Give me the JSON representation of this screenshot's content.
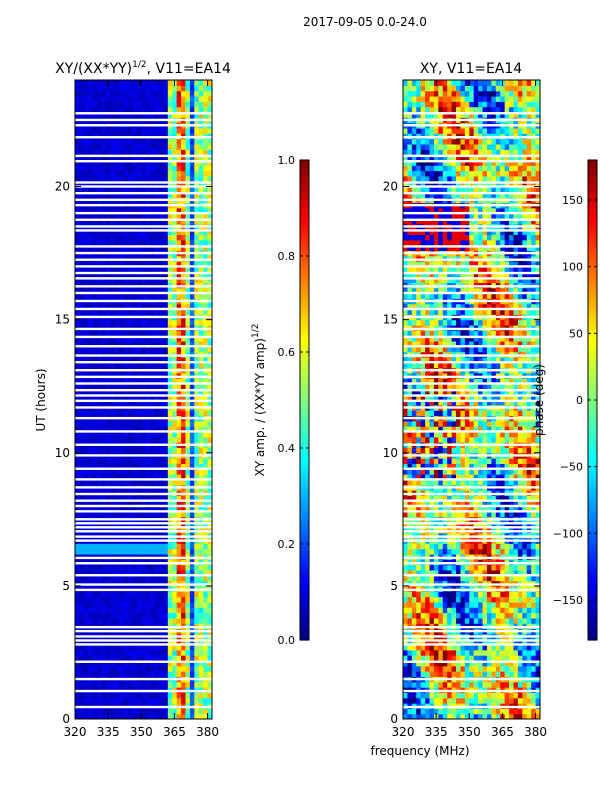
{
  "figure_title": "2017-09-05 0.0-24.0",
  "colors": {
    "jet": [
      "#00007f",
      "#0000ff",
      "#007fff",
      "#00ffff",
      "#7fff7f",
      "#ffff00",
      "#ff7f00",
      "#ff0000",
      "#7f0000"
    ],
    "axis": "#000000",
    "gap": "#ffffff"
  },
  "chart_data": [
    {
      "type": "heatmap",
      "title_main": "XY/(XX*YY)",
      "title_sup": "1/2",
      "title_rest": ", V11=EA14",
      "xlabel": "frequency (MHz)",
      "ylabel": "UT (hours)",
      "xlim": [
        320,
        382
      ],
      "ylim": [
        0,
        24
      ],
      "xticks": [
        "320",
        "335",
        "350",
        "365",
        "380"
      ],
      "xtick_values": [
        320,
        335,
        350,
        365,
        380
      ],
      "yticks": [
        "0",
        "5",
        "10",
        "15",
        "20"
      ],
      "ytick_values": [
        0,
        5,
        10,
        15,
        20
      ],
      "colorbar": {
        "label_main": "XY amp. / (XX*YY amp)",
        "label_sup": "1/2",
        "range": [
          0.0,
          1.0
        ],
        "ticks": [
          "0.0",
          "0.2",
          "0.4",
          "0.6",
          "0.8",
          "1.0"
        ],
        "tick_values": [
          0.0,
          0.2,
          0.4,
          0.6,
          0.8,
          1.0
        ]
      },
      "features": {
        "background_value": 0.05,
        "bright_band_mhz": [
          363,
          381
        ],
        "bright_value": 0.5,
        "hot_band_mhz": [
          366,
          370
        ],
        "hot_value": 0.85,
        "feature_hours": [
          6.3,
          6.6
        ],
        "feature_value": 0.3
      }
    },
    {
      "type": "heatmap",
      "title_main": "XY, V11=EA14",
      "xlim": [
        320,
        382
      ],
      "ylim": [
        0,
        24
      ],
      "xticks": [
        "320",
        "335",
        "350",
        "365",
        "380"
      ],
      "xtick_values": [
        320,
        335,
        350,
        365,
        380
      ],
      "yticks": [
        "0",
        "5",
        "10",
        "15",
        "20"
      ],
      "ytick_values": [
        0,
        5,
        10,
        15,
        20
      ],
      "colorbar": {
        "label": "phase (deg)",
        "range": [
          -180,
          180
        ],
        "ticks": [
          "150",
          "100",
          "50",
          "0",
          "−50",
          "−100",
          "−150"
        ],
        "tick_values": [
          150,
          100,
          50,
          0,
          -50,
          -100,
          -150
        ]
      }
    }
  ],
  "flagged_hours": [
    0.45,
    1.05,
    1.5,
    2.15,
    2.8,
    2.95,
    3.1,
    3.3,
    3.45,
    4.85,
    5.05,
    5.4,
    5.85,
    6.05,
    6.7,
    6.85,
    7.05,
    7.2,
    7.35,
    7.5,
    7.8,
    8.0,
    8.2,
    8.45,
    8.7,
    9.0,
    9.4,
    9.9,
    10.3,
    10.8,
    11.3,
    11.7,
    11.95,
    12.15,
    12.35,
    12.6,
    12.85,
    13.1,
    13.4,
    13.65,
    14.0,
    14.35,
    14.65,
    15.1,
    15.4,
    15.7,
    16.0,
    16.25,
    16.55,
    16.75,
    17.0,
    17.25,
    17.5,
    17.75,
    18.35,
    18.5,
    18.75,
    19.0,
    19.3,
    19.5,
    19.75,
    20.0,
    20.15,
    20.95,
    21.15,
    21.85,
    22.3,
    22.5,
    22.75
  ]
}
